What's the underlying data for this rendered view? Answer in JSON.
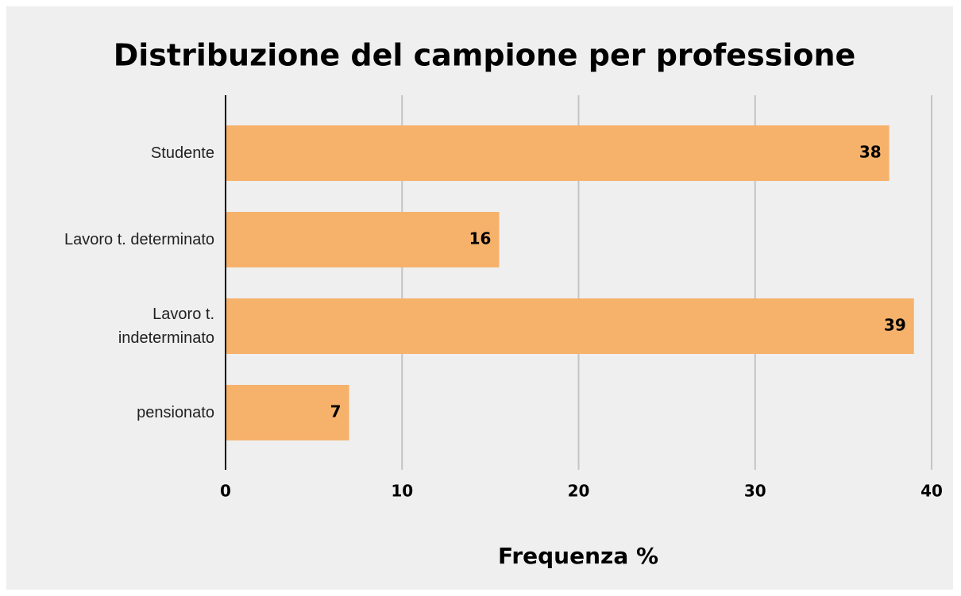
{
  "chart_data": {
    "type": "bar",
    "orientation": "horizontal",
    "title": "Distribuzione del campione per professione",
    "xlabel": "Frequenza %",
    "categories": [
      "Studente",
      "Lavoro t. determinato",
      "Lavoro t. indeterminato",
      "pensionato"
    ],
    "values": [
      37.6,
      15.5,
      39,
      7
    ],
    "value_labels": [
      "38",
      "16",
      "39",
      "7"
    ],
    "color": "#f6b26b",
    "xlim": [
      0,
      40
    ],
    "xticks": [
      0,
      10,
      20,
      30,
      40
    ],
    "grid": true
  }
}
